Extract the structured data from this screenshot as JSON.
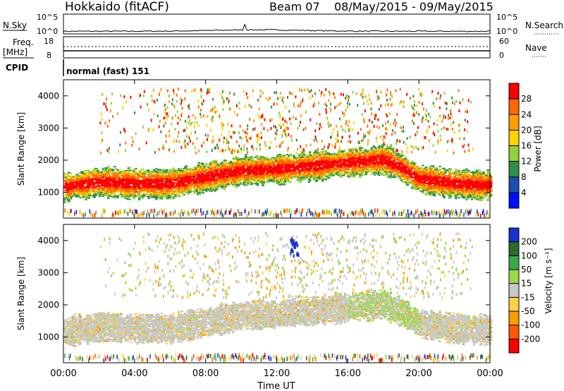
{
  "header": {
    "station": "Hokkaido (fitACF)",
    "beam": "Beam 07",
    "date_range": "08/May/2015 - 09/May/2015"
  },
  "status_panels": {
    "nsky_label": "N.Sky",
    "nsky_ticks": [
      "10^5",
      "10^0"
    ],
    "nsearch_label": "N.Search",
    "nsearch_ticks": [
      "10^5",
      "10^0"
    ],
    "freq_label": "Freq.",
    "freq_unit": "[MHz]",
    "freq_ticks": [
      "18",
      "8"
    ],
    "nave_label": "Nave",
    "nave_ticks": [
      "60",
      "0"
    ],
    "cpid_label": "CPID",
    "cpid_value": "normal (fast) 151"
  },
  "chart_data": [
    {
      "type": "heatmap",
      "name": "power",
      "ylabel": "Slant Range [km]",
      "ylim": [
        200,
        4500
      ],
      "yticks": [
        "4000",
        "3000",
        "2000",
        "1000"
      ],
      "xlim": [
        0,
        24
      ],
      "colorbar": {
        "label": "Power [dB]",
        "ticks": [
          "28",
          "24",
          "20",
          "16",
          "12",
          "8",
          "4"
        ],
        "colors": [
          "#ff0000",
          "#ff6a00",
          "#ff9c00",
          "#ffd200",
          "#8fd13b",
          "#2f8f4a",
          "#1a4fb0",
          "#0010ff"
        ]
      },
      "main_band": [
        {
          "t": 0,
          "r": 1150
        },
        {
          "t": 2,
          "r": 1300
        },
        {
          "t": 4,
          "r": 1250
        },
        {
          "t": 6,
          "r": 1250
        },
        {
          "t": 8,
          "r": 1450
        },
        {
          "t": 10,
          "r": 1650
        },
        {
          "t": 12,
          "r": 1700
        },
        {
          "t": 14,
          "r": 1800
        },
        {
          "t": 16,
          "r": 1900
        },
        {
          "t": 18,
          "r": 2000
        },
        {
          "t": 19,
          "r": 1750
        },
        {
          "t": 20,
          "r": 1400
        },
        {
          "t": 22,
          "r": 1250
        },
        {
          "t": 24,
          "r": 1200
        }
      ]
    },
    {
      "type": "heatmap",
      "name": "velocity",
      "ylabel": "Slant Range [km]",
      "ylim": [
        200,
        4500
      ],
      "yticks": [
        "4000",
        "3000",
        "2000",
        "1000"
      ],
      "xlim": [
        0,
        24
      ],
      "colorbar": {
        "label": "Velocity [m s⁻¹]",
        "ticks": [
          "200",
          "100",
          "50",
          "15",
          "-15",
          "-50",
          "-100",
          "-200"
        ],
        "colors": [
          "#1a2fd0",
          "#2f6a2f",
          "#3aa84a",
          "#9ad84a",
          "#c8c8c8",
          "#ffd04a",
          "#ff9c00",
          "#ff5a00",
          "#ff0000"
        ]
      }
    }
  ],
  "xaxis": {
    "ticks": [
      "00:00",
      "04:00",
      "08:00",
      "12:00",
      "16:00",
      "20:00",
      "00:00"
    ],
    "label": "Time UT"
  }
}
